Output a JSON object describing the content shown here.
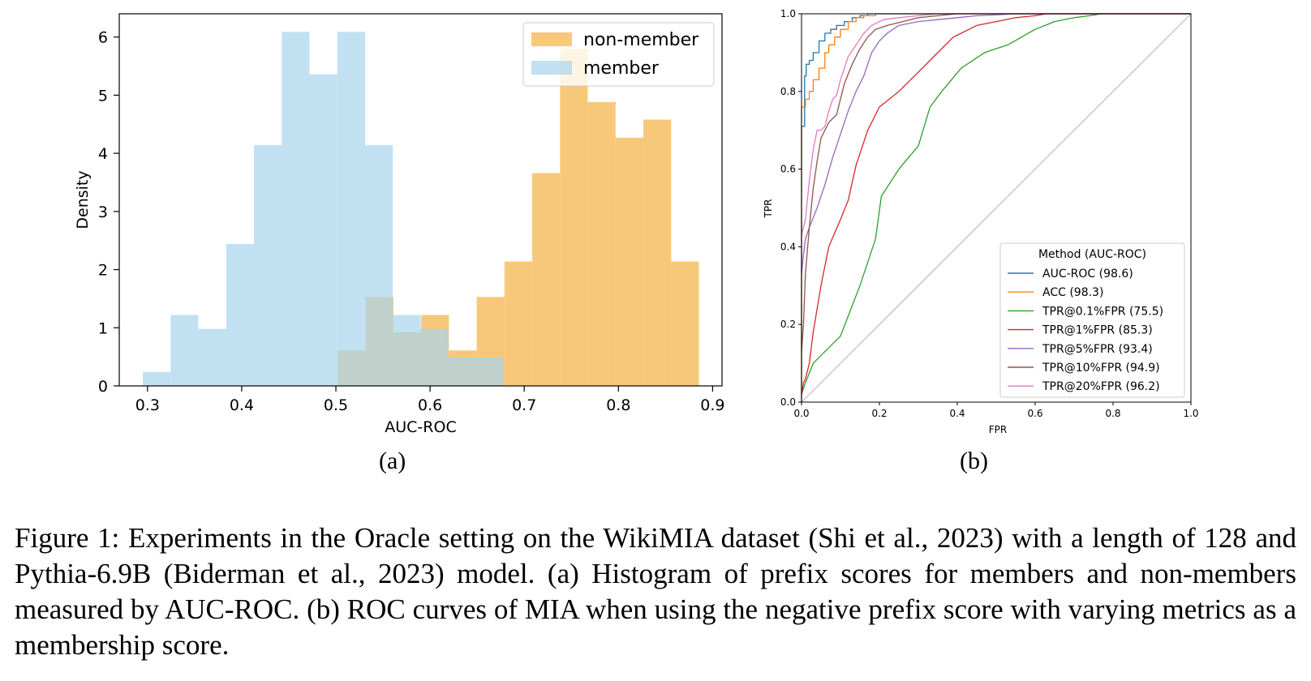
{
  "chart_data": [
    {
      "type": "histogram",
      "panel": "(a)",
      "xlabel": "AUC-ROC",
      "ylabel": "Density",
      "xlim": [
        0.27,
        0.91
      ],
      "ylim": [
        0,
        6.4
      ],
      "xticks": [
        "0.3",
        "0.4",
        "0.5",
        "0.6",
        "0.7",
        "0.8",
        "0.9"
      ],
      "yticks": [
        "0",
        "1",
        "2",
        "3",
        "4",
        "5",
        "6"
      ],
      "legend_position": "top-right",
      "series": [
        {
          "name": "non-member",
          "color": "#f5b041",
          "bin_width": 0.0295,
          "bins": [
            {
              "x0": 0.502,
              "y": 0.61
            },
            {
              "x0": 0.5315,
              "y": 1.53
            },
            {
              "x0": 0.561,
              "y": 0.92
            },
            {
              "x0": 0.5905,
              "y": 1.22
            },
            {
              "x0": 0.62,
              "y": 0.61
            },
            {
              "x0": 0.6495,
              "y": 1.53
            },
            {
              "x0": 0.679,
              "y": 2.14
            },
            {
              "x0": 0.7085,
              "y": 3.66
            },
            {
              "x0": 0.738,
              "y": 5.8
            },
            {
              "x0": 0.7675,
              "y": 4.88
            },
            {
              "x0": 0.797,
              "y": 4.27
            },
            {
              "x0": 0.8265,
              "y": 4.58
            },
            {
              "x0": 0.856,
              "y": 2.14
            }
          ]
        },
        {
          "name": "member",
          "color": "#a6d4ec",
          "bin_width": 0.0295,
          "bins": [
            {
              "x0": 0.295,
              "y": 0.24
            },
            {
              "x0": 0.3245,
              "y": 1.22
            },
            {
              "x0": 0.354,
              "y": 0.98
            },
            {
              "x0": 0.3835,
              "y": 2.44
            },
            {
              "x0": 0.413,
              "y": 4.14
            },
            {
              "x0": 0.4425,
              "y": 6.09
            },
            {
              "x0": 0.472,
              "y": 5.36
            },
            {
              "x0": 0.5015,
              "y": 6.09
            },
            {
              "x0": 0.531,
              "y": 4.14
            },
            {
              "x0": 0.5605,
              "y": 1.22
            },
            {
              "x0": 0.59,
              "y": 0.98
            },
            {
              "x0": 0.6195,
              "y": 0.49
            },
            {
              "x0": 0.649,
              "y": 0.49
            }
          ]
        }
      ]
    },
    {
      "type": "line",
      "panel": "(b)",
      "xlabel": "FPR",
      "ylabel": "TPR",
      "xlim": [
        0,
        1
      ],
      "ylim": [
        0,
        1
      ],
      "xticks": [
        "0.0",
        "0.2",
        "0.4",
        "0.6",
        "0.8",
        "1.0"
      ],
      "yticks": [
        "0.0",
        "0.2",
        "0.4",
        "0.6",
        "0.8",
        "1.0"
      ],
      "legend_title": "Method (AUC-ROC)",
      "legend_position": "lower-right",
      "diagonal_color": "#bbbbbb",
      "series": [
        {
          "name": "AUC-ROC (98.6)",
          "color": "#1f77b4",
          "x": [
            0,
            0,
            0.008,
            0.008,
            0.012,
            0.012,
            0.02,
            0.02,
            0.03,
            0.03,
            0.045,
            0.045,
            0.06,
            0.06,
            0.075,
            0.075,
            0.09,
            0.09,
            0.11,
            0.11,
            0.13,
            0.13,
            0.15,
            0.15,
            0.17,
            0.17,
            0.2,
            1
          ],
          "y": [
            0,
            0.71,
            0.71,
            0.84,
            0.84,
            0.87,
            0.87,
            0.88,
            0.88,
            0.9,
            0.9,
            0.93,
            0.93,
            0.95,
            0.95,
            0.96,
            0.96,
            0.97,
            0.97,
            0.98,
            0.98,
            0.99,
            0.99,
            0.995,
            0.995,
            1,
            1,
            1
          ]
        },
        {
          "name": "ACC (98.3)",
          "color": "#ff7f0e",
          "x": [
            0,
            0,
            0.01,
            0.01,
            0.02,
            0.02,
            0.03,
            0.03,
            0.045,
            0.045,
            0.06,
            0.06,
            0.07,
            0.07,
            0.085,
            0.085,
            0.1,
            0.1,
            0.12,
            0.12,
            0.14,
            0.14,
            0.16,
            0.16,
            0.19,
            0.19,
            1
          ],
          "y": [
            0,
            0.76,
            0.76,
            0.78,
            0.78,
            0.8,
            0.8,
            0.83,
            0.83,
            0.86,
            0.86,
            0.9,
            0.9,
            0.92,
            0.92,
            0.94,
            0.94,
            0.96,
            0.96,
            0.98,
            0.98,
            0.99,
            0.99,
            0.995,
            0.995,
            1,
            1
          ]
        },
        {
          "name": "TPR@0.1%FPR (75.5)",
          "color": "#2ca02c",
          "x": [
            0,
            0.01,
            0.03,
            0.06,
            0.1,
            0.15,
            0.19,
            0.205,
            0.25,
            0.3,
            0.33,
            0.36,
            0.41,
            0.47,
            0.53,
            0.6,
            0.65,
            0.7,
            0.74,
            0.77,
            1
          ],
          "y": [
            0.02,
            0.05,
            0.1,
            0.13,
            0.17,
            0.3,
            0.42,
            0.53,
            0.6,
            0.66,
            0.76,
            0.8,
            0.86,
            0.9,
            0.92,
            0.96,
            0.98,
            0.99,
            0.995,
            1,
            1
          ]
        },
        {
          "name": "TPR@1%FPR (85.3)",
          "color": "#d62728",
          "x": [
            0,
            0.005,
            0.01,
            0.02,
            0.03,
            0.05,
            0.07,
            0.1,
            0.12,
            0.14,
            0.17,
            0.2,
            0.25,
            0.3,
            0.33,
            0.36,
            0.39,
            0.41,
            0.45,
            0.5,
            0.55,
            0.6,
            0.63,
            1
          ],
          "y": [
            0.02,
            0.05,
            0.06,
            0.1,
            0.18,
            0.3,
            0.4,
            0.47,
            0.52,
            0.61,
            0.7,
            0.76,
            0.8,
            0.85,
            0.88,
            0.91,
            0.94,
            0.95,
            0.97,
            0.98,
            0.99,
            0.995,
            1,
            1
          ]
        },
        {
          "name": "TPR@5%FPR (93.4)",
          "color": "#9467bd",
          "x": [
            0,
            0.005,
            0.01,
            0.02,
            0.04,
            0.06,
            0.08,
            0.1,
            0.12,
            0.14,
            0.16,
            0.18,
            0.2,
            0.22,
            0.25,
            0.3,
            0.35,
            0.4,
            0.45,
            0.5,
            0.55,
            1
          ],
          "y": [
            0.33,
            0.38,
            0.42,
            0.45,
            0.5,
            0.56,
            0.63,
            0.69,
            0.75,
            0.8,
            0.84,
            0.9,
            0.93,
            0.95,
            0.97,
            0.98,
            0.985,
            0.99,
            0.995,
            0.997,
            1,
            1
          ]
        },
        {
          "name": "TPR@10%FPR (94.9)",
          "color": "#8c564b",
          "x": [
            0,
            0.005,
            0.01,
            0.02,
            0.03,
            0.04,
            0.05,
            0.07,
            0.09,
            0.11,
            0.13,
            0.15,
            0.17,
            0.19,
            0.22,
            0.26,
            0.3,
            0.35,
            0.4,
            1
          ],
          "y": [
            0.13,
            0.2,
            0.33,
            0.45,
            0.55,
            0.62,
            0.68,
            0.72,
            0.74,
            0.82,
            0.87,
            0.91,
            0.94,
            0.96,
            0.97,
            0.98,
            0.99,
            0.995,
            1,
            1
          ]
        },
        {
          "name": "TPR@20%FPR (96.2)",
          "color": "#e377c2",
          "x": [
            0,
            0.005,
            0.01,
            0.02,
            0.03,
            0.04,
            0.05,
            0.06,
            0.07,
            0.08,
            0.09,
            0.1,
            0.11,
            0.12,
            0.14,
            0.16,
            0.18,
            0.21,
            0.25,
            0.3,
            0.35,
            1
          ],
          "y": [
            0.43,
            0.45,
            0.47,
            0.57,
            0.65,
            0.7,
            0.7,
            0.71,
            0.75,
            0.78,
            0.79,
            0.83,
            0.86,
            0.89,
            0.92,
            0.95,
            0.97,
            0.985,
            0.99,
            0.995,
            1,
            1
          ]
        }
      ]
    }
  ],
  "labels": {
    "a": "(a)",
    "b": "(b)"
  },
  "caption": "Figure 1: Experiments in the Oracle setting on the WikiMIA dataset (Shi et al., 2023) with a length of 128 and Pythia-6.9B (Biderman et al., 2023) model. (a) Histogram of prefix scores for members and non-members measured by AUC-ROC. (b) ROC curves of MIA when using the negative prefix score with varying metrics as a membership score."
}
